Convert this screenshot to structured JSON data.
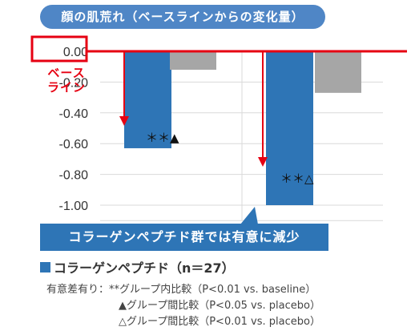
{
  "chart_data": {
    "type": "bar",
    "title": "顔の肌荒れ（ベースラインからの変化量）",
    "categories": [
      "",
      ""
    ],
    "series": [
      {
        "name": "コラーゲンペプチド（n＝27）",
        "color": "#2e75b6",
        "values": [
          -0.63,
          -1.0
        ]
      },
      {
        "name": "",
        "color": "#a6a6a6",
        "values": [
          -0.12,
          -0.27
        ]
      }
    ],
    "ylim": [
      -1.1,
      0.0
    ],
    "yticks": [
      "0.00",
      "-0.20",
      "-0.40",
      "-0.60",
      "-0.80",
      "-1.00"
    ],
    "grid": true,
    "significance_marks": [
      "＊＊▲",
      "＊＊△"
    ],
    "legend": {
      "position": "bottom-left",
      "label": "コラーゲンペプチド（n＝27）"
    }
  },
  "baseline_label_1": "ベース",
  "baseline_label_2": "ライン",
  "callout_text": "コラーゲンペプチド群では有意に減少",
  "notes": {
    "line1": "有意差有り：**グループ内比較（P<0.01 vs. baseline）",
    "line2": "▲グループ間比較（P<0.05 vs. placebo）",
    "line3": "△グループ間比較（P<0.01 vs. placebo）"
  },
  "colors": {
    "accent_red": "#e60012",
    "title_blue": "#4f86c6",
    "bar_blue": "#2e75b6",
    "bar_gray": "#a6a6a6"
  }
}
